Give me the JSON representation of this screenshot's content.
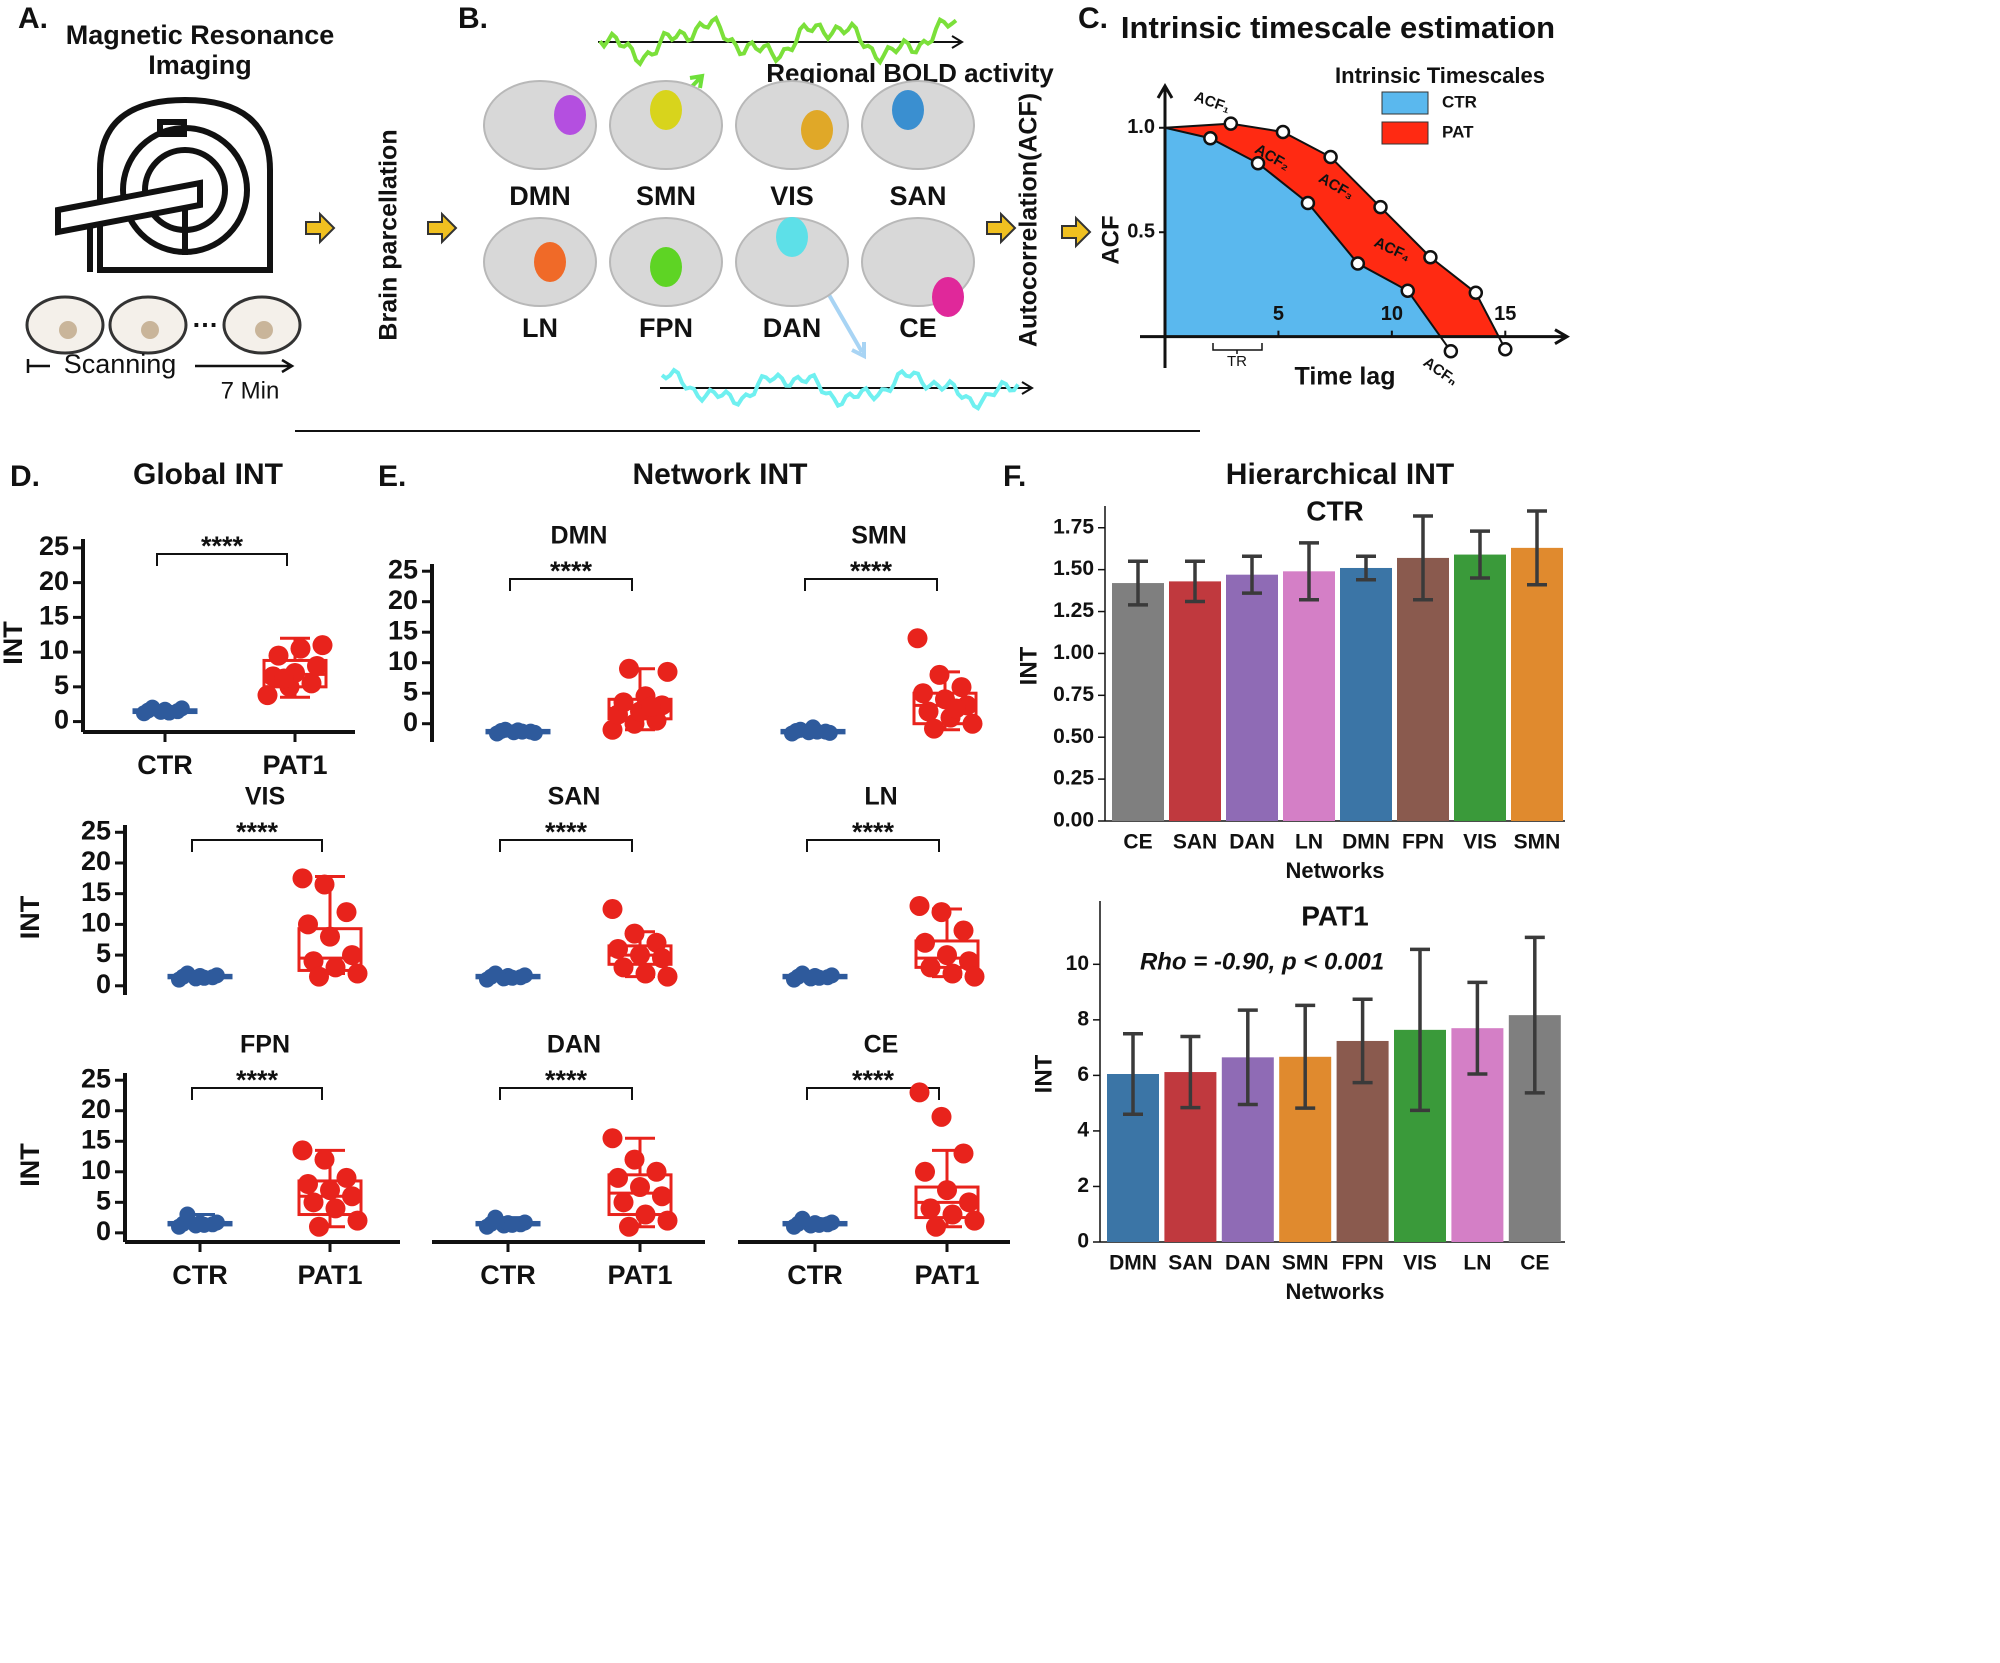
{
  "figure": {
    "panel_a": {
      "label": "A.",
      "title_line1": "Magnetic Resonance",
      "title_line2": "Imaging",
      "scanning": "Scanning",
      "duration": "7 Min"
    },
    "parcellation": "Brain parcellation",
    "autocorrelation": "Autocorrelation(ACF)",
    "panel_b": {
      "label": "B.",
      "caption": "Regional BOLD activity",
      "networks": [
        "DMN",
        "SMN",
        "VIS",
        "SAN",
        "LN",
        "FPN",
        "DAN",
        "CE"
      ]
    },
    "panel_c": {
      "label": "C."
    },
    "panel_d": {
      "label": "D."
    },
    "panel_e": {
      "label": "E.",
      "title": "Network INT"
    },
    "panel_f": {
      "label": "F.",
      "title": "Hierarchical INT"
    }
  },
  "chart_data": [
    {
      "type": "acf",
      "title": "Intrinsic timescale estimation",
      "legend_title": "Intrinsic Timescales",
      "xlabel": "Time lag",
      "ylabel": "ACF",
      "interval_label": "TR",
      "xlim": [
        0,
        17.5
      ],
      "ylim": [
        -0.15,
        1.2
      ],
      "xticks": [
        5,
        10,
        15
      ],
      "yticks": [
        {
          "value": 1,
          "label": "1.0"
        },
        0.5
      ],
      "series": [
        {
          "name": "CTR",
          "color": "#5ab8ee",
          "x": [
            0,
            2.0,
            4.1,
            6.3,
            8.5,
            10.7,
            12.6
          ],
          "values": [
            1.0,
            0.95,
            0.83,
            0.64,
            0.35,
            0.22,
            -0.07
          ]
        },
        {
          "name": "PAT",
          "color": "#ff2a12",
          "x": [
            0,
            2.9,
            5.2,
            7.3,
            9.5,
            11.7,
            13.7,
            15
          ],
          "values": [
            1.0,
            1.02,
            0.98,
            0.86,
            0.62,
            0.38,
            0.21,
            -0.06
          ]
        }
      ],
      "annotations": [
        "ACF₁",
        "ACF₂",
        "ACF₃",
        "ACF₄",
        "ACFₙ"
      ]
    },
    {
      "type": "box",
      "title": "Global  INT",
      "ylabel": "INT",
      "categories": [
        "CTR",
        "PAT1"
      ],
      "annotation": "****",
      "ylim": [
        -1.5,
        27
      ],
      "yticks": [
        0,
        5,
        10,
        15,
        20,
        25
      ],
      "boxes": [
        {
          "color": "#2e5a9c",
          "min": 1.0,
          "q1": 1.3,
          "median": 1.5,
          "q3": 1.7,
          "max": 2.1,
          "points": [
            1.2,
            1.4,
            1.5,
            1.6,
            1.7,
            1.9,
            2.0,
            1.3
          ]
        },
        {
          "color": "#e8231c",
          "min": 3.5,
          "q1": 5.0,
          "median": 6.8,
          "q3": 8.8,
          "max": 12,
          "points": [
            3.8,
            5.0,
            5.5,
            6.5,
            7.0,
            8.0,
            9.5,
            10.5,
            11.0,
            6.2
          ]
        }
      ]
    },
    {
      "type": "box",
      "title": "DMN",
      "annotation": "****",
      "ylim": [
        -3,
        27
      ],
      "yticks": [
        0,
        5,
        10,
        15,
        20,
        25
      ],
      "boxes": [
        {
          "color": "#2e5a9c",
          "min": -1.7,
          "q1": -1.5,
          "median": -1.3,
          "q3": -1.1,
          "max": -0.9,
          "points": [
            -1.6,
            -1.4,
            -1.3,
            -1.2,
            -1.1,
            -1.5,
            -1.0,
            -1.3
          ]
        },
        {
          "color": "#e8231c",
          "min": -1,
          "q1": 0.8,
          "median": 2.5,
          "q3": 4,
          "max": 9,
          "points": [
            -1,
            0,
            0.5,
            1.5,
            2,
            3,
            3.5,
            4.5,
            8.5,
            9,
            2.8
          ]
        }
      ]
    },
    {
      "type": "box",
      "title": "SMN",
      "annotation": "****",
      "ylim": [
        -3,
        27
      ],
      "boxes": [
        {
          "color": "#2e5a9c",
          "min": -1.7,
          "q1": -1.5,
          "median": -1.3,
          "q3": -1.1,
          "max": -0.5,
          "points": [
            -1.6,
            -1.4,
            -1.3,
            -1.2,
            -0.6,
            -1.5,
            -1.0,
            -1.3
          ]
        },
        {
          "color": "#e8231c",
          "min": -1,
          "q1": 0,
          "median": 3,
          "q3": 5,
          "max": 8.5,
          "points": [
            14,
            8,
            6,
            5,
            4,
            3,
            2,
            1,
            0,
            -0.8,
            2.5
          ]
        }
      ]
    },
    {
      "type": "box",
      "title": "VIS",
      "ylabel": "INT",
      "annotation": "****",
      "ylim": [
        -1.5,
        27
      ],
      "yticks": [
        0,
        5,
        10,
        15,
        20,
        25
      ],
      "boxes": [
        {
          "color": "#2e5a9c",
          "min": 1.0,
          "q1": 1.3,
          "median": 1.5,
          "q3": 1.7,
          "max": 2.0,
          "points": [
            1.0,
            1.2,
            1.4,
            1.5,
            1.6,
            1.7,
            2.0,
            1.3
          ]
        },
        {
          "color": "#e8231c",
          "min": 2,
          "q1": 2.5,
          "median": 4.5,
          "q3": 9.3,
          "max": 17.8,
          "points": [
            17.5,
            16.5,
            12,
            10,
            8,
            5,
            4,
            3,
            2,
            1.5
          ]
        }
      ]
    },
    {
      "type": "box",
      "title": "SAN",
      "annotation": "****",
      "ylim": [
        -1.5,
        27
      ],
      "boxes": [
        {
          "color": "#2e5a9c",
          "min": 1.0,
          "q1": 1.3,
          "median": 1.5,
          "q3": 1.7,
          "max": 2.0,
          "points": [
            1.0,
            1.2,
            1.4,
            1.5,
            1.6,
            1.7,
            2.0,
            1.3
          ]
        },
        {
          "color": "#e8231c",
          "min": 1.5,
          "q1": 3.5,
          "median": 5,
          "q3": 6.5,
          "max": 8.8,
          "points": [
            12.5,
            8.5,
            7,
            6,
            5,
            4.5,
            3,
            2,
            1.5
          ]
        }
      ]
    },
    {
      "type": "box",
      "title": "LN",
      "annotation": "****",
      "ylim": [
        -1.5,
        27
      ],
      "boxes": [
        {
          "color": "#2e5a9c",
          "min": 1.0,
          "q1": 1.3,
          "median": 1.5,
          "q3": 1.7,
          "max": 2.0,
          "points": [
            1.0,
            1.2,
            1.4,
            1.5,
            1.6,
            1.7,
            2.0,
            1.3
          ]
        },
        {
          "color": "#e8231c",
          "min": 1.5,
          "q1": 3,
          "median": 4.5,
          "q3": 7.3,
          "max": 12.5,
          "points": [
            13,
            12,
            9,
            7,
            5,
            4,
            3,
            2,
            1.5
          ]
        }
      ]
    },
    {
      "type": "box",
      "title": "FPN",
      "ylabel": "INT",
      "categories": [
        "CTR",
        "PAT1"
      ],
      "annotation": "****",
      "ylim": [
        -1.5,
        27
      ],
      "yticks": [
        0,
        5,
        10,
        15,
        20,
        25
      ],
      "boxes": [
        {
          "color": "#2e5a9c",
          "min": 1.0,
          "q1": 1.3,
          "median": 1.5,
          "q3": 1.7,
          "max": 3.0,
          "points": [
            1.0,
            1.2,
            1.4,
            1.5,
            1.6,
            1.7,
            3.0,
            1.3
          ]
        },
        {
          "color": "#e8231c",
          "min": 1,
          "q1": 3,
          "median": 6,
          "q3": 8.5,
          "max": 13.5,
          "points": [
            13.5,
            12,
            9,
            8,
            7,
            6,
            5,
            4,
            2,
            1
          ]
        }
      ]
    },
    {
      "type": "box",
      "title": "DAN",
      "categories": [
        "CTR",
        "PAT1"
      ],
      "annotation": "****",
      "ylim": [
        -1.5,
        27
      ],
      "boxes": [
        {
          "color": "#2e5a9c",
          "min": 1.0,
          "q1": 1.3,
          "median": 1.5,
          "q3": 1.7,
          "max": 2.5,
          "points": [
            1.0,
            1.2,
            1.4,
            1.5,
            1.6,
            1.7,
            2.5,
            1.3
          ]
        },
        {
          "color": "#e8231c",
          "min": 1,
          "q1": 3,
          "median": 6.5,
          "q3": 9.5,
          "max": 15.5,
          "points": [
            15.5,
            12,
            10,
            9,
            7.5,
            6,
            5,
            3,
            2,
            1
          ]
        }
      ]
    },
    {
      "type": "box",
      "title": "CE",
      "categories": [
        "CTR",
        "PAT1"
      ],
      "annotation": "****",
      "ylim": [
        -1.5,
        27
      ],
      "boxes": [
        {
          "color": "#2e5a9c",
          "min": 1.0,
          "q1": 1.3,
          "median": 1.5,
          "q3": 1.7,
          "max": 2.3,
          "points": [
            1.0,
            1.2,
            1.4,
            1.5,
            1.6,
            1.7,
            2.3,
            1.3
          ]
        },
        {
          "color": "#e8231c",
          "min": 1,
          "q1": 2.5,
          "median": 5,
          "q3": 7.5,
          "max": 13.5,
          "points": [
            23,
            19,
            13,
            10,
            7,
            5,
            4,
            3,
            2,
            1
          ]
        }
      ]
    },
    {
      "type": "bar",
      "title": "CTR",
      "xlabel": "Networks",
      "ylabel": "INT",
      "categories": [
        "CE",
        "SAN",
        "DAN",
        "LN",
        "DMN",
        "FPN",
        "VIS",
        "SMN"
      ],
      "values": [
        1.42,
        1.43,
        1.47,
        1.49,
        1.51,
        1.57,
        1.59,
        1.63
      ],
      "errors": [
        0.13,
        0.12,
        0.11,
        0.17,
        0.07,
        0.25,
        0.14,
        0.22
      ],
      "colors": [
        "#7f7f7f",
        "#c0393e",
        "#8f6bb5",
        "#d47fc6",
        "#3b75a6",
        "#8a5a4e",
        "#3a9a3a",
        "#e08a2e"
      ],
      "ylim": [
        0,
        1.85
      ],
      "yticks": [
        {
          "value": 0,
          "label": "0.00"
        },
        {
          "value": 0.25,
          "label": "0.25"
        },
        {
          "value": 0.5,
          "label": "0.50"
        },
        {
          "value": 0.75,
          "label": "0.75"
        },
        {
          "value": 1,
          "label": "1.00"
        },
        {
          "value": 1.25,
          "label": "1.25"
        },
        {
          "value": 1.5,
          "label": "1.50"
        },
        {
          "value": 1.75,
          "label": "1.75"
        }
      ]
    },
    {
      "type": "bar",
      "title": "PAT1",
      "xlabel": "Networks",
      "ylabel": "INT",
      "annotation": "Rho = -0.90, p < 0.001",
      "categories": [
        "DMN",
        "SAN",
        "DAN",
        "SMN",
        "FPN",
        "VIS",
        "LN",
        "CE"
      ],
      "values": [
        6.05,
        6.12,
        6.65,
        6.67,
        7.24,
        7.64,
        7.7,
        8.17
      ],
      "errors": [
        1.45,
        1.28,
        1.7,
        1.85,
        1.5,
        2.9,
        1.65,
        2.8
      ],
      "colors": [
        "#3b75a6",
        "#c0393e",
        "#8f6bb5",
        "#e08a2e",
        "#8a5a4e",
        "#3a9a3a",
        "#d47fc6",
        "#7f7f7f"
      ],
      "ylim": [
        0,
        12.1
      ],
      "yticks": [
        0,
        2,
        4,
        6,
        8,
        10
      ]
    }
  ]
}
